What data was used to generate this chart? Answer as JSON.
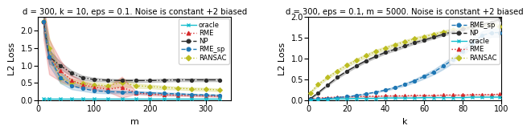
{
  "plot1": {
    "title": "d = 300, k = 10, eps = 0.1. Noise is constant +2 biased",
    "xlabel": "m",
    "ylabel": "L2 Loss",
    "ylim": [
      0.0,
      2.4
    ],
    "xlim": [
      0,
      345
    ],
    "xticks": [
      0,
      100,
      200,
      300
    ],
    "yticks": [
      0.0,
      0.5,
      1.0,
      1.5,
      2.0
    ],
    "m_values": [
      10,
      20,
      40,
      60,
      80,
      100,
      125,
      150,
      175,
      200,
      225,
      250,
      275,
      300,
      325
    ],
    "oracle": [
      0.05,
      0.05,
      0.05,
      0.05,
      0.05,
      0.05,
      0.05,
      0.05,
      0.05,
      0.05,
      0.05,
      0.05,
      0.05,
      0.05,
      0.05
    ],
    "oracle_std": [
      0.01,
      0.01,
      0.01,
      0.01,
      0.01,
      0.01,
      0.01,
      0.01,
      0.01,
      0.01,
      0.01,
      0.01,
      0.01,
      0.01,
      0.01
    ],
    "RME": [
      2.25,
      1.25,
      0.85,
      0.58,
      0.45,
      0.38,
      0.32,
      0.38,
      0.22,
      0.18,
      0.16,
      0.15,
      0.14,
      0.13,
      0.12
    ],
    "RME_std": [
      0.5,
      0.5,
      0.3,
      0.15,
      0.1,
      0.08,
      0.07,
      0.3,
      0.04,
      0.03,
      0.03,
      0.02,
      0.02,
      0.02,
      0.02
    ],
    "NP": [
      2.25,
      1.25,
      1.0,
      0.78,
      0.65,
      0.6,
      0.58,
      0.57,
      0.57,
      0.57,
      0.58,
      0.59,
      0.59,
      0.59,
      0.59
    ],
    "NP_std": [
      0.3,
      0.2,
      0.1,
      0.08,
      0.06,
      0.05,
      0.04,
      0.04,
      0.04,
      0.04,
      0.04,
      0.04,
      0.04,
      0.04,
      0.04
    ],
    "RME_sp": [
      2.25,
      1.25,
      0.65,
      0.42,
      0.34,
      0.28,
      0.25,
      0.24,
      0.23,
      0.22,
      0.2,
      0.19,
      0.17,
      0.16,
      0.15
    ],
    "RME_sp_std": [
      0.3,
      0.25,
      0.15,
      0.1,
      0.07,
      0.06,
      0.05,
      0.04,
      0.04,
      0.03,
      0.03,
      0.03,
      0.02,
      0.02,
      0.02
    ],
    "RANSAC": [
      2.25,
      1.5,
      0.65,
      0.52,
      0.48,
      0.45,
      0.42,
      0.52,
      0.42,
      0.4,
      0.37,
      0.35,
      0.33,
      0.32,
      0.3
    ],
    "RANSAC_std": [
      0.3,
      0.3,
      0.15,
      0.1,
      0.08,
      0.07,
      0.06,
      0.12,
      0.06,
      0.05,
      0.05,
      0.04,
      0.04,
      0.04,
      0.04
    ],
    "colors": {
      "oracle": "#17becf",
      "RME": "#d62728",
      "NP": "#2d2d2d",
      "RME_sp": "#1f77b4",
      "RANSAC": "#bcbd22"
    }
  },
  "plot2": {
    "title": "d = 300, eps = 0.1, m = 5000. Noise is constant +2 biased",
    "xlabel": "k",
    "ylabel": "L2 Loss",
    "ylim": [
      0.0,
      2.0
    ],
    "xlim": [
      0,
      100
    ],
    "xticks": [
      0,
      20,
      40,
      60,
      80,
      100
    ],
    "yticks": [
      0.0,
      0.5,
      1.0,
      1.5,
      2.0
    ],
    "k_values": [
      1,
      5,
      10,
      15,
      20,
      25,
      30,
      35,
      40,
      45,
      50,
      55,
      60,
      65,
      70,
      75,
      80,
      85,
      90,
      95,
      99
    ],
    "oracle": [
      0.01,
      0.02,
      0.03,
      0.04,
      0.04,
      0.05,
      0.05,
      0.05,
      0.06,
      0.06,
      0.06,
      0.06,
      0.07,
      0.07,
      0.07,
      0.07,
      0.07,
      0.08,
      0.08,
      0.08,
      0.08
    ],
    "oracle_std": [
      0.003,
      0.003,
      0.004,
      0.004,
      0.004,
      0.004,
      0.004,
      0.004,
      0.004,
      0.004,
      0.004,
      0.004,
      0.004,
      0.004,
      0.004,
      0.004,
      0.004,
      0.004,
      0.004,
      0.004,
      0.004
    ],
    "RME": [
      0.03,
      0.06,
      0.07,
      0.08,
      0.09,
      0.09,
      0.1,
      0.1,
      0.11,
      0.11,
      0.11,
      0.12,
      0.12,
      0.12,
      0.13,
      0.13,
      0.13,
      0.14,
      0.14,
      0.14,
      0.15
    ],
    "RME_std": [
      0.005,
      0.006,
      0.006,
      0.007,
      0.007,
      0.007,
      0.008,
      0.008,
      0.008,
      0.008,
      0.009,
      0.009,
      0.009,
      0.009,
      0.009,
      0.009,
      0.009,
      0.01,
      0.01,
      0.01,
      0.01
    ],
    "NP": [
      0.04,
      0.18,
      0.37,
      0.55,
      0.7,
      0.83,
      0.95,
      1.05,
      1.15,
      1.22,
      1.3,
      1.38,
      1.44,
      1.51,
      1.58,
      1.64,
      1.7,
      1.76,
      1.81,
      1.87,
      1.93
    ],
    "NP_std": [
      0.01,
      0.02,
      0.02,
      0.03,
      0.03,
      0.03,
      0.03,
      0.03,
      0.03,
      0.03,
      0.03,
      0.03,
      0.03,
      0.03,
      0.03,
      0.03,
      0.03,
      0.03,
      0.03,
      0.03,
      0.03
    ],
    "RME_sp": [
      0.02,
      0.04,
      0.05,
      0.07,
      0.09,
      0.12,
      0.16,
      0.2,
      0.25,
      0.31,
      0.38,
      0.47,
      0.57,
      0.68,
      0.82,
      0.98,
      1.18,
      1.38,
      1.55,
      1.62,
      1.62
    ],
    "RME_sp_std": [
      0.003,
      0.005,
      0.006,
      0.007,
      0.009,
      0.01,
      0.01,
      0.01,
      0.02,
      0.02,
      0.03,
      0.04,
      0.05,
      0.06,
      0.07,
      0.08,
      0.1,
      0.1,
      0.1,
      0.1,
      0.1
    ],
    "RANSAC": [
      0.18,
      0.38,
      0.55,
      0.7,
      0.84,
      0.96,
      1.07,
      1.17,
      1.25,
      1.33,
      1.4,
      1.47,
      1.52,
      1.58,
      1.63,
      1.68,
      1.72,
      1.76,
      1.8,
      1.84,
      1.77
    ],
    "RANSAC_std": [
      0.02,
      0.03,
      0.03,
      0.04,
      0.04,
      0.04,
      0.04,
      0.04,
      0.04,
      0.04,
      0.04,
      0.04,
      0.04,
      0.04,
      0.04,
      0.04,
      0.04,
      0.04,
      0.04,
      0.04,
      0.04
    ],
    "colors": {
      "oracle": "#17becf",
      "RME": "#d62728",
      "NP": "#2d2d2d",
      "RME_sp": "#1f77b4",
      "RANSAC": "#bcbd22"
    }
  }
}
